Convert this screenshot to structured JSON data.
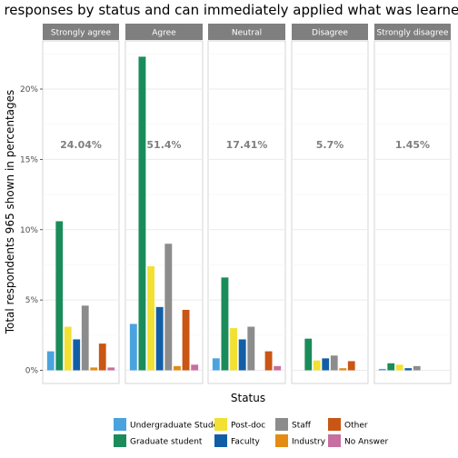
{
  "chart_data": {
    "type": "bar",
    "title": "survey responses by status and can immediately applied what was learned at th",
    "xlabel": "Status",
    "ylabel": "Total respondents 965 shown in percentages",
    "ylim": [
      0,
      23
    ],
    "y_ticks": [
      0,
      5,
      10,
      15,
      20
    ],
    "y_tick_labels": [
      "0%",
      "5%",
      "10%",
      "15%",
      "20%"
    ],
    "facets": [
      "Strongly agree",
      "Agree",
      "Neutral",
      "Disagree",
      "Strongly disagree"
    ],
    "facet_totals": [
      "24.04%",
      "51.4%",
      "17.41%",
      "5.7%",
      "1.45%"
    ],
    "legend_position": "bottom",
    "series": [
      {
        "name": "Undergraduate Student",
        "color": "#4aa3df",
        "values": [
          1.35,
          3.3,
          0.85,
          null,
          0.1
        ]
      },
      {
        "name": "Graduate student",
        "color": "#1a8c5a",
        "values": [
          10.6,
          22.3,
          6.6,
          2.25,
          0.5
        ]
      },
      {
        "name": "Post-doc",
        "color": "#f2e033",
        "values": [
          3.1,
          7.4,
          3.0,
          0.7,
          0.4
        ]
      },
      {
        "name": "Faculty",
        "color": "#125ea6",
        "values": [
          2.2,
          4.5,
          2.2,
          0.85,
          0.15
        ]
      },
      {
        "name": "Staff",
        "color": "#8c8c8c",
        "values": [
          4.6,
          9.0,
          3.1,
          1.05,
          0.3
        ]
      },
      {
        "name": "Industry",
        "color": "#e38b12",
        "values": [
          0.2,
          0.3,
          null,
          0.15,
          null
        ]
      },
      {
        "name": "Other",
        "color": "#c95614",
        "values": [
          1.9,
          4.3,
          1.35,
          0.65,
          null
        ]
      },
      {
        "name": "No Answer",
        "color": "#c76fa0",
        "values": [
          0.2,
          0.4,
          0.3,
          null,
          null
        ]
      }
    ]
  }
}
